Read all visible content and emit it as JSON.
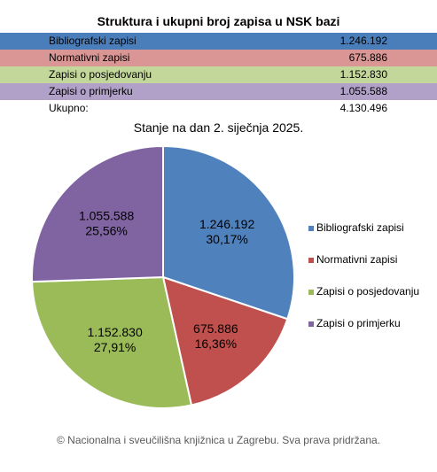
{
  "chart_data": {
    "type": "pie",
    "title": "Struktura i ukupni broj zapisa u NSK bazi",
    "subtitle": "Stanje na dan 2. siječnja 2025.",
    "slices": [
      {
        "name": "Bibliografski zapisi",
        "value": 1246192,
        "value_label": "1.246.192",
        "percent_label": "30,17%",
        "color": "#4f81bd",
        "row_color": "#4a7ebb"
      },
      {
        "name": "Normativni zapisi",
        "value": 675886,
        "value_label": "675.886",
        "percent_label": "16,36%",
        "color": "#c0504d",
        "row_color": "#da9694"
      },
      {
        "name": "Zapisi o posjedovanju",
        "value": 1152830,
        "value_label": "1.152.830",
        "percent_label": "27,91%",
        "color": "#9bbb59",
        "row_color": "#c4d79b"
      },
      {
        "name": "Zapisi o primjerku",
        "value": 1055588,
        "value_label": "1.055.588",
        "percent_label": "25,56%",
        "color": "#8064a2",
        "row_color": "#b1a0c7"
      }
    ],
    "total_label": "Ukupno:",
    "total_value": "4.130.496",
    "legend": "right"
  },
  "footer": "© Nacionalna i sveučilišna knjižnica u Zagrebu. Sva prava pridržana."
}
